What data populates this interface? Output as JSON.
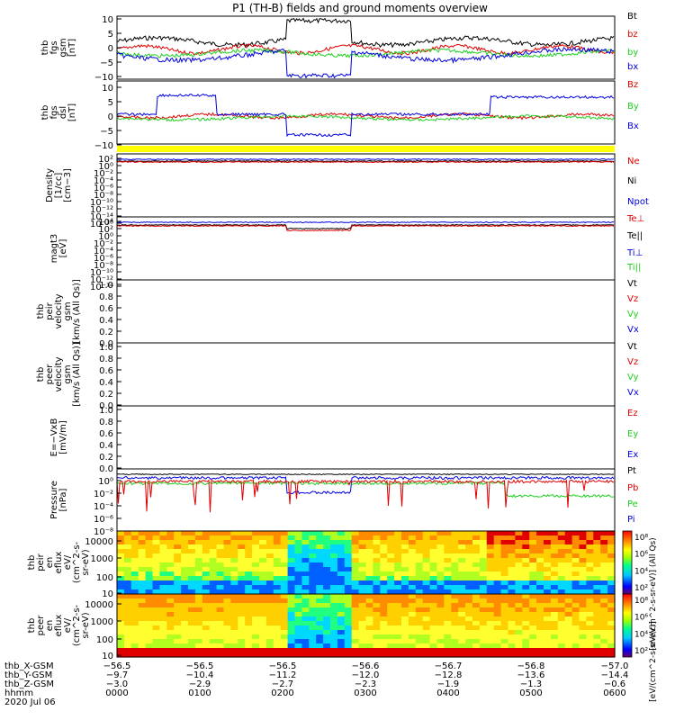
{
  "title": "P1 (TH-B) fields and ground moments overview",
  "colors": {
    "black": "#000000",
    "red": "#e00000",
    "green": "#20d020",
    "blue": "#0000e0",
    "yellow": "#ffff00"
  },
  "chart_data": [
    {
      "type": "line",
      "panel": "fgs_gsm",
      "ylabel": [
        "thb",
        "fgs",
        "gsm",
        "[nT]"
      ],
      "ylim": [
        -10,
        10
      ],
      "yticks": [
        "10",
        "5",
        "0",
        "−5",
        "−10"
      ],
      "series": [
        {
          "name": "Bt",
          "color": "black"
        },
        {
          "name": "bz",
          "color": "red"
        },
        {
          "name": "by",
          "color": "green"
        },
        {
          "name": "bx",
          "color": "blue"
        }
      ]
    },
    {
      "type": "line",
      "panel": "fgs_dsl",
      "ylabel": [
        "thb",
        "fgs",
        "dsl",
        "[nT]"
      ],
      "ylim": [
        -15,
        15
      ],
      "yticks": [
        "10",
        "5",
        "0",
        "−5",
        "−10"
      ],
      "series": [
        {
          "name": "Bz",
          "color": "red"
        },
        {
          "name": "By",
          "color": "green"
        },
        {
          "name": "Bx",
          "color": "blue"
        }
      ]
    },
    {
      "type": "line",
      "panel": "density",
      "ylabel": [
        "Density",
        "[1/cc]",
        "[cm−3]"
      ],
      "yticks": [
        "10²",
        "10⁰",
        "10⁻²",
        "10⁻⁴",
        "10⁻⁶",
        "10⁻⁸",
        "10⁻¹⁰",
        "10⁻¹²",
        "10⁻¹⁴",
        "10⁻¹⁶"
      ],
      "series": [
        {
          "name": "Ne",
          "color": "red"
        },
        {
          "name": "Ni",
          "color": "black"
        },
        {
          "name": "Npot",
          "color": "blue"
        }
      ]
    },
    {
      "type": "line",
      "panel": "temperature",
      "ylabel": [
        "magt3",
        "[eV]"
      ],
      "yticks": [
        "10⁴",
        "10²",
        "10⁰",
        "10⁻²",
        "10⁻⁴",
        "10⁻⁶",
        "10⁻⁸",
        "10⁻¹⁰",
        "10⁻¹²",
        "10⁻¹⁴"
      ],
      "series": [
        {
          "name": "Te⊥",
          "color": "red"
        },
        {
          "name": "Te||",
          "color": "black"
        },
        {
          "name": "Ti⊥",
          "color": "blue"
        },
        {
          "name": "Ti||",
          "color": "green"
        }
      ]
    },
    {
      "type": "line",
      "panel": "peir_velocity",
      "ylabel": [
        "thb",
        "peir",
        "velocity",
        "gsm",
        "[km/s (All Qs)]"
      ],
      "yticks": [
        "1.0",
        "0.8",
        "0.6",
        "0.4",
        "0.2",
        "0.0"
      ],
      "series": [
        {
          "name": "Vt",
          "color": "black"
        },
        {
          "name": "Vz",
          "color": "red"
        },
        {
          "name": "Vy",
          "color": "green"
        },
        {
          "name": "Vx",
          "color": "blue"
        }
      ]
    },
    {
      "type": "line",
      "panel": "peer_velocity",
      "ylabel": [
        "thb",
        "peer",
        "velocity",
        "gsm",
        "[km/s (All Qs)]"
      ],
      "yticks": [
        "1.0",
        "0.8",
        "0.6",
        "0.4",
        "0.2",
        "0.0"
      ],
      "series": [
        {
          "name": "Vt",
          "color": "black"
        },
        {
          "name": "Vz",
          "color": "red"
        },
        {
          "name": "Vy",
          "color": "green"
        },
        {
          "name": "Vx",
          "color": "blue"
        }
      ]
    },
    {
      "type": "line",
      "panel": "efield",
      "ylabel": [
        "E=−VxB",
        "[mV/m]"
      ],
      "yticks": [
        "1.0",
        "0.8",
        "0.6",
        "0.4",
        "0.2",
        "0.0"
      ],
      "series": [
        {
          "name": "Ez",
          "color": "red"
        },
        {
          "name": "Ey",
          "color": "green"
        },
        {
          "name": "Ex",
          "color": "blue"
        }
      ]
    },
    {
      "type": "line",
      "panel": "pressure",
      "ylabel": [
        "Pressure",
        "[nPa]"
      ],
      "yticks": [
        "10⁰",
        "10⁻²",
        "10⁻⁴",
        "10⁻⁶",
        "10⁻⁸"
      ],
      "series": [
        {
          "name": "Pt",
          "color": "black"
        },
        {
          "name": "Pb",
          "color": "red"
        },
        {
          "name": "Pe",
          "color": "green"
        },
        {
          "name": "Pi",
          "color": "blue"
        }
      ]
    },
    {
      "type": "heatmap",
      "panel": "peir_eflux",
      "ylabel": [
        "thb",
        "peir",
        "en",
        "eflux",
        "eV/",
        "(cm^2-s-",
        "sr-eV)"
      ],
      "yticks": [
        "10000",
        "1000",
        "100",
        "10"
      ],
      "colorbar_ticks": [
        "10⁸",
        "10⁶",
        "10⁴",
        "10²"
      ]
    },
    {
      "type": "heatmap",
      "panel": "peer_eflux",
      "ylabel": [
        "thb",
        "peer",
        "en",
        "eflux",
        "eV/",
        "(cm^2-s-",
        "sr-eV)"
      ],
      "yticks": [
        "10000",
        "1000",
        "100",
        "10"
      ],
      "colorbar_ticks": [
        "10⁸",
        "10⁶",
        "10⁴",
        "10²"
      ]
    }
  ],
  "colorbar_labels": [
    "[eV/(cm^2-s-sr-eV)] (All Qs)",
    "[eV/(cm^2-s-sr-eV)]"
  ],
  "x_axis": {
    "rows": [
      {
        "label": "thb_X-GSM",
        "values": [
          "−56.5",
          "−56.5",
          "−56.5",
          "−56.6",
          "−56.7",
          "−56.8",
          "−57.0"
        ]
      },
      {
        "label": "thb_Y-GSM",
        "values": [
          "−9.7",
          "−10.4",
          "−11.2",
          "−12.0",
          "−12.8",
          "−13.6",
          "−14.4"
        ]
      },
      {
        "label": "thb_Z-GSM",
        "values": [
          "−3.0",
          "−2.9",
          "−2.7",
          "−2.3",
          "−1.9",
          "−1.3",
          "−0.6"
        ]
      },
      {
        "label": "hhmm",
        "values": [
          "0000",
          "0100",
          "0200",
          "0300",
          "0400",
          "0500",
          "0600"
        ]
      }
    ],
    "date": "2020 Jul 06"
  }
}
